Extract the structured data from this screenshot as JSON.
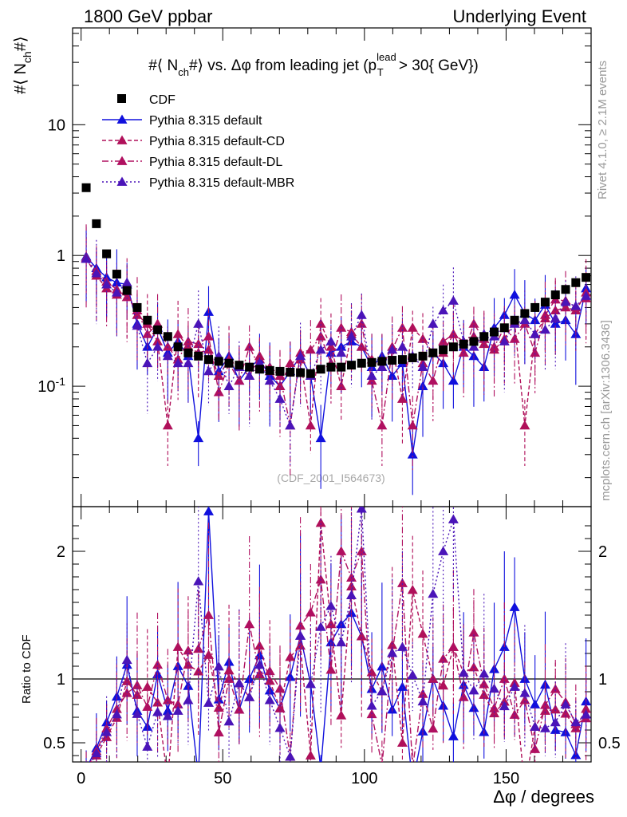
{
  "header": {
    "left": "1800 GeV ppbar",
    "right": "Underlying Event"
  },
  "side": {
    "rivet": "Rivet 4.1.0, ≥ 2.1M events",
    "mcplots": "mcplots.cern.ch [arXiv:1306.3436]"
  },
  "chart_data": {
    "type": "scatter",
    "title": "#⟨ N_ch#⟩ vs. Δφ from leading jet  (p_T^lead > 30{ GeV})",
    "title_parts": {
      "main": "#⟨ N",
      "main_sub": "ch",
      "main_tail": "#⟩ vs. Δφ from leading jet  (p",
      "pt_sup": "lead",
      "pt_sub": "T",
      "cut": " > 30{ GeV})"
    },
    "ylabel": "#⟨ N_ch#⟩",
    "ylabel_parts": {
      "a": "#⟨ N",
      "b": "ch",
      "c": "#⟩"
    },
    "xlabel": "Δφ / degrees",
    "ratio_ylabel": "Ratio to CDF",
    "watermark": "(CDF_2001_I564673)",
    "xlim": [
      -3,
      180
    ],
    "ylim": [
      0.012,
      55
    ],
    "yscale": "log",
    "ratio_ylim": [
      0.35,
      2.35
    ],
    "x_ticks": [
      "0",
      "50",
      "100",
      "150"
    ],
    "y_tick_labels": [
      "10",
      "1",
      "10^-1"
    ],
    "ratio_tick_labels": [
      "2",
      "1",
      "0.5"
    ],
    "legend": [
      {
        "name": "CDF",
        "style": "marker-square",
        "color": "#000000"
      },
      {
        "name": "Pythia 8.315 default",
        "style": "solid",
        "color": "#1010dd"
      },
      {
        "name": "Pythia 8.315 default-CD",
        "style": "dashed",
        "color": "#b0105a"
      },
      {
        "name": "Pythia 8.315 default-DL",
        "style": "dashdot",
        "color": "#b01060"
      },
      {
        "name": "Pythia 8.315 default-MBR",
        "style": "dotted",
        "color": "#4a14b8"
      }
    ],
    "x": [
      1.8,
      5.4,
      9.0,
      12.6,
      16.2,
      19.8,
      23.4,
      27.0,
      30.6,
      34.2,
      37.8,
      41.4,
      45.0,
      48.6,
      52.2,
      55.8,
      59.4,
      63.0,
      66.6,
      70.2,
      73.8,
      77.4,
      81.0,
      84.6,
      88.2,
      91.8,
      95.4,
      99.0,
      102.6,
      106.2,
      109.8,
      113.4,
      117.0,
      120.6,
      124.2,
      127.8,
      131.4,
      135.0,
      138.6,
      142.2,
      145.8,
      149.4,
      153.0,
      156.6,
      160.2,
      163.8,
      167.4,
      171.0,
      174.6,
      178.2
    ],
    "series": [
      {
        "name": "CDF",
        "color": "#000000",
        "values": [
          3.3,
          1.75,
          1.03,
          0.72,
          0.54,
          0.4,
          0.32,
          0.27,
          0.24,
          0.2,
          0.18,
          0.17,
          0.16,
          0.155,
          0.15,
          0.145,
          0.14,
          0.135,
          0.132,
          0.13,
          0.128,
          0.127,
          0.125,
          0.135,
          0.14,
          0.14,
          0.145,
          0.15,
          0.152,
          0.155,
          0.158,
          0.16,
          0.165,
          0.17,
          0.18,
          0.19,
          0.2,
          0.21,
          0.22,
          0.24,
          0.26,
          0.28,
          0.32,
          0.36,
          0.4,
          0.44,
          0.5,
          0.55,
          0.62,
          0.68
        ]
      },
      {
        "name": "Pythia 8.315 default",
        "color": "#1010dd",
        "values": [
          0.98,
          0.8,
          0.68,
          0.62,
          0.6,
          0.3,
          0.2,
          0.28,
          0.18,
          0.22,
          0.17,
          0.04,
          0.37,
          0.13,
          0.17,
          0.11,
          0.14,
          0.16,
          0.12,
          0.1,
          0.13,
          0.17,
          0.12,
          0.04,
          0.18,
          0.2,
          0.22,
          0.2,
          0.14,
          0.17,
          0.12,
          0.15,
          0.03,
          0.1,
          0.18,
          0.15,
          0.11,
          0.2,
          0.17,
          0.14,
          0.28,
          0.35,
          0.5,
          0.36,
          0.32,
          0.42,
          0.3,
          0.32,
          0.25,
          0.56
        ]
      },
      {
        "name": "Pythia 8.315 default-CD",
        "color": "#b0105a",
        "values": [
          0.95,
          0.7,
          0.56,
          0.5,
          0.53,
          0.35,
          0.3,
          0.22,
          0.05,
          0.25,
          0.2,
          0.18,
          0.19,
          0.12,
          0.16,
          0.14,
          0.12,
          0.17,
          0.13,
          0.1,
          0.15,
          0.16,
          0.05,
          0.3,
          0.2,
          0.1,
          0.25,
          0.2,
          0.16,
          0.14,
          0.2,
          0.08,
          0.28,
          0.23,
          0.18,
          0.18,
          0.25,
          0.22,
          0.24,
          0.21,
          0.19,
          0.23,
          0.31,
          0.05,
          0.25,
          0.33,
          0.38,
          0.4,
          0.38,
          0.52
        ]
      },
      {
        "name": "Pythia 8.315 default-DL",
        "color": "#b01060",
        "values": [
          0.96,
          0.76,
          0.63,
          0.55,
          0.48,
          0.38,
          0.25,
          0.3,
          0.2,
          0.16,
          0.22,
          0.21,
          0.24,
          0.09,
          0.15,
          0.11,
          0.2,
          0.14,
          0.14,
          0.12,
          0.05,
          0.18,
          0.19,
          0.24,
          0.15,
          0.28,
          0.26,
          0.3,
          0.11,
          0.05,
          0.19,
          0.28,
          0.05,
          0.15,
          0.11,
          0.22,
          0.25,
          0.18,
          0.3,
          0.23,
          0.2,
          0.28,
          0.23,
          0.3,
          0.18,
          0.35,
          0.46,
          0.45,
          0.4,
          0.47
        ]
      },
      {
        "name": "Pythia 8.315 default-MBR",
        "color": "#4a14b8",
        "values": [
          0.94,
          0.73,
          0.6,
          0.52,
          0.62,
          0.29,
          0.15,
          0.2,
          0.17,
          0.15,
          0.15,
          0.3,
          0.13,
          0.17,
          0.1,
          0.14,
          0.12,
          0.15,
          0.11,
          0.08,
          0.05,
          0.17,
          0.12,
          0.19,
          0.22,
          0.18,
          0.24,
          0.35,
          0.12,
          0.14,
          0.19,
          0.2,
          0.17,
          0.14,
          0.3,
          0.38,
          0.45,
          0.22,
          0.2,
          0.25,
          0.24,
          0.22,
          0.3,
          0.32,
          0.25,
          0.27,
          0.33,
          0.44,
          0.41,
          0.49
        ]
      }
    ]
  }
}
